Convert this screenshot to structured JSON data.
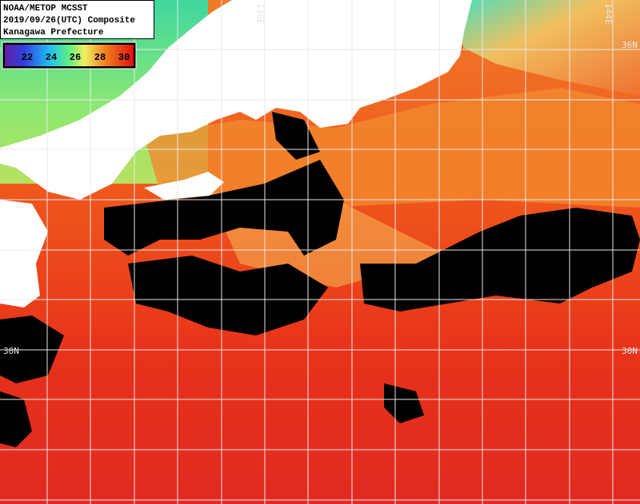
{
  "header": {
    "lines": [
      "NOAA/METOP MCSST",
      "2019/09/26(UTC) Composite",
      "Kanagawa Prefecture"
    ]
  },
  "colorbar": {
    "labels": [
      22,
      24,
      26,
      28,
      30
    ]
  },
  "grid_labels": {
    "longitude": [
      "136E",
      "144E"
    ],
    "latitude_right": [
      "36N",
      "30N"
    ],
    "latitude_left": [
      "30N"
    ]
  }
}
